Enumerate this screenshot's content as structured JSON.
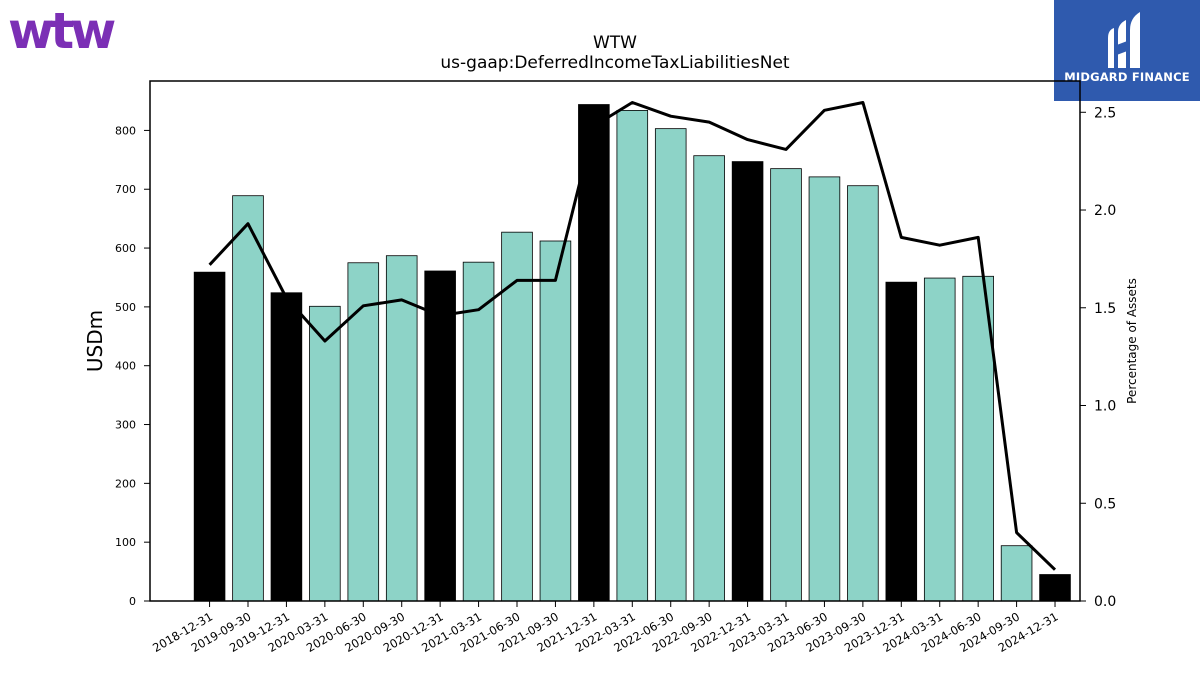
{
  "logos": {
    "left_text": "wtw",
    "left_color": "#7b2fb5",
    "right_text": "MIDGARD FINANCE",
    "right_bg": "#2f5aae"
  },
  "colors": {
    "annual_bar": "#000000",
    "quarter_bar": "#8dd3c7",
    "line": "#000000"
  },
  "chart_data": {
    "type": "bar",
    "title": "WTW",
    "subtitle": "us-gaap:DeferredIncomeTaxLiabilitiesNet",
    "ylabel": "USDm",
    "y2label": "Percentage of Assets",
    "ylim": [
      0,
      884
    ],
    "y2lim": [
      0,
      2.66
    ],
    "yticks": [
      0,
      100,
      200,
      300,
      400,
      500,
      600,
      700,
      800
    ],
    "y2ticks": [
      "0.0",
      "0.5",
      "1.0",
      "1.5",
      "2.0",
      "2.5"
    ],
    "categories": [
      "2018-12-31",
      "2019-09-30",
      "2019-12-31",
      "2020-03-31",
      "2020-06-30",
      "2020-09-30",
      "2020-12-31",
      "2021-03-31",
      "2021-06-30",
      "2021-09-30",
      "2021-12-31",
      "2022-03-31",
      "2022-06-30",
      "2022-09-30",
      "2022-12-31",
      "2023-03-31",
      "2023-06-30",
      "2023-09-30",
      "2023-12-31",
      "2024-03-31",
      "2024-06-30",
      "2024-09-30",
      "2024-12-31"
    ],
    "series": [
      {
        "kind": "bar",
        "values": [
          559,
          689,
          524,
          501,
          575,
          587,
          561,
          576,
          627,
          612,
          844,
          834,
          803,
          757,
          747,
          735,
          721,
          706,
          542,
          549,
          552,
          94,
          45
        ],
        "annual": [
          true,
          false,
          true,
          false,
          false,
          false,
          true,
          false,
          false,
          false,
          true,
          false,
          false,
          false,
          true,
          false,
          false,
          false,
          true,
          false,
          false,
          false,
          true
        ]
      },
      {
        "kind": "line",
        "axis": "right",
        "values": [
          1.72,
          1.93,
          1.55,
          1.33,
          1.51,
          1.54,
          1.46,
          1.49,
          1.64,
          1.64,
          2.43,
          2.55,
          2.48,
          2.45,
          2.36,
          2.31,
          2.51,
          2.55,
          1.86,
          1.82,
          1.86,
          0.35,
          0.16
        ]
      }
    ]
  }
}
